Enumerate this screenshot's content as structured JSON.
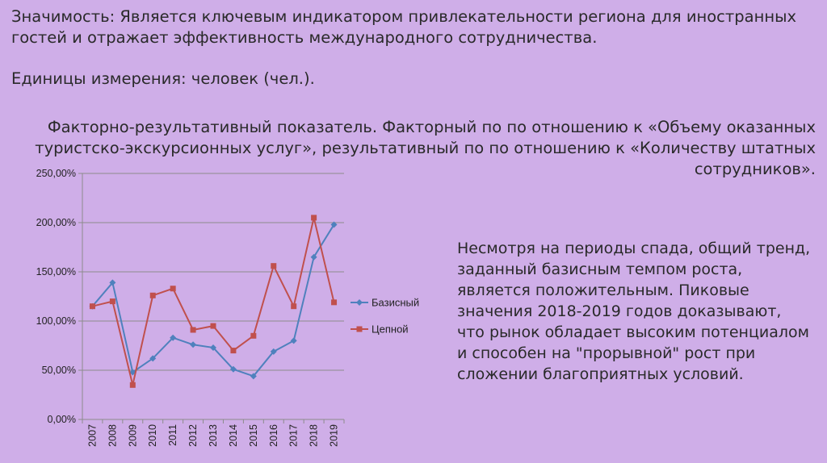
{
  "slide": {
    "significance": "Значимость: Является ключевым индикатором привлекательности региона для иностранных гостей и отражает эффективность международного сотрудничества.",
    "units": "Единицы измерения: человек (чел.).",
    "factor_result": "Факторно-результативный показатель. Факторный по по отношению к «Объему оказанных туристско-экскурсионных услуг», результативный по по отношению к «Количеству штатных сотрудников».",
    "conclusion": "Несмотря на периоды спада, общий тренд, заданный базисным темпом роста, является положительным. Пиковые значения 2018-2019 годов доказывают, что рынок обладает высоким потенциалом и способен на \"прорывной\" рост при сложении благоприятных условий."
  },
  "chart_data": {
    "type": "line",
    "categories": [
      "2007",
      "2008",
      "2009",
      "2010",
      "2011",
      "2012",
      "2013",
      "2014",
      "2015",
      "2016",
      "2017",
      "2018",
      "2019"
    ],
    "series": [
      {
        "name": "Базисный",
        "values": [
          115,
          139,
          48,
          62,
          83,
          76,
          73,
          51,
          44,
          69,
          80,
          165,
          198
        ],
        "color": "#4f81bd",
        "marker": "diamond"
      },
      {
        "name": "Цепной",
        "values": [
          115,
          120,
          35,
          126,
          133,
          91,
          95,
          70,
          85,
          156,
          115,
          205,
          119
        ],
        "color": "#c0504d",
        "marker": "square"
      }
    ],
    "ylim": [
      0,
      250
    ],
    "yticks": [
      "0,00%",
      "50,00%",
      "100,00%",
      "150,00%",
      "200,00%",
      "250,00%"
    ],
    "grid": "horizontal",
    "legend": "right"
  }
}
